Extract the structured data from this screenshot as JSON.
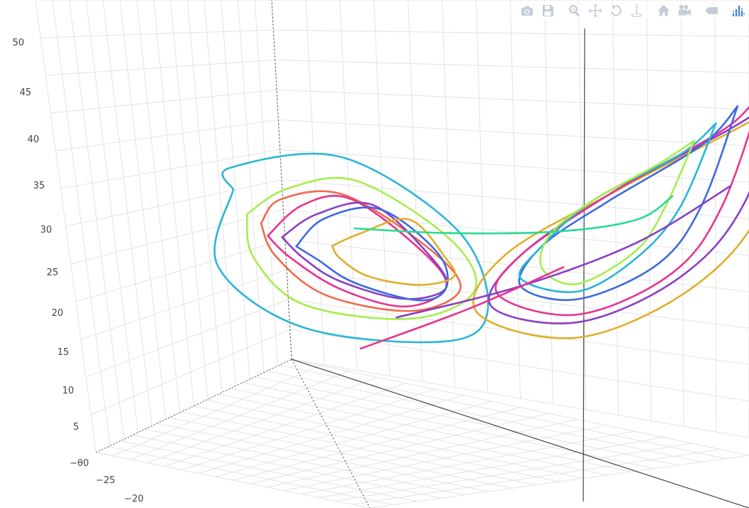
{
  "colors": {
    "background": "#ffffff",
    "grid": "#e3e3e3",
    "axis_line": "#444444",
    "tick_text": "#444444",
    "modebar_icon": "#c4cdd8",
    "plotly_logo": "#3f83cf"
  },
  "modebar": [
    {
      "name": "download-png-icon",
      "title": "Download plot as a png"
    },
    {
      "name": "save-icon",
      "title": "Save"
    },
    {
      "name": "zoom-icon",
      "title": "Zoom"
    },
    {
      "name": "pan-icon",
      "title": "Pan"
    },
    {
      "name": "orbit-rotation-icon",
      "title": "Orbital rotation"
    },
    {
      "name": "turntable-rotation-icon",
      "title": "Turntable rotation"
    },
    {
      "name": "reset-camera-icon",
      "title": "Reset camera to default"
    },
    {
      "name": "last-save-camera-icon",
      "title": "Reset camera to last save"
    },
    {
      "name": "hover-toggle-icon",
      "title": "Toggle show closest data on hover"
    },
    {
      "name": "plotly-logo-icon",
      "title": "Produced with Plotly"
    }
  ],
  "chart_data": {
    "type": "line",
    "subtype": "3d",
    "title": "",
    "grid": true,
    "legend": "none",
    "z_axis": {
      "ticks": [
        "50",
        "45",
        "40",
        "35",
        "30",
        "25",
        "20",
        "15",
        "10",
        "5",
        "−θ0"
      ],
      "range": [
        0,
        50
      ]
    },
    "x_axis": {
      "ticks": [
        "−25",
        "−20"
      ]
    },
    "series": [
      {
        "color": "#29b6d6",
        "points": [
          [
            -14,
            -4,
            30
          ],
          [
            -9,
            -14,
            38
          ],
          [
            2,
            -20,
            44
          ],
          [
            8,
            -16,
            34
          ],
          [
            6,
            -8,
            20
          ],
          [
            0,
            -2,
            12
          ],
          [
            -8,
            -6,
            14
          ],
          [
            -13,
            -8,
            22
          ],
          [
            -14,
            -4,
            30
          ]
        ]
      },
      {
        "color": "#a4ef4d",
        "points": [
          [
            -12,
            -6,
            28
          ],
          [
            -6,
            -12,
            35
          ],
          [
            1,
            -16,
            39
          ],
          [
            6,
            -13,
            31
          ],
          [
            4,
            -6,
            21
          ],
          [
            -2,
            -3,
            15
          ],
          [
            -8,
            -6,
            17
          ],
          [
            -11,
            -7,
            23
          ],
          [
            -12,
            -6,
            28
          ]
        ]
      },
      {
        "color": "#f2694a",
        "points": [
          [
            -11,
            -6,
            27
          ],
          [
            -7,
            -11,
            33
          ],
          [
            -1,
            -14,
            36
          ],
          [
            4,
            -12,
            29
          ],
          [
            3,
            -6,
            21
          ],
          [
            -2,
            -3,
            16
          ],
          [
            -7,
            -5,
            18
          ],
          [
            -10,
            -6,
            23
          ],
          [
            -11,
            -6,
            27
          ]
        ]
      },
      {
        "color": "#e8338f",
        "points": [
          [
            -10,
            -7,
            26
          ],
          [
            -6,
            -10,
            32
          ],
          [
            -1,
            -13,
            35
          ],
          [
            3,
            -11,
            28
          ],
          [
            2,
            -6,
            21
          ],
          [
            -2,
            -4,
            17
          ],
          [
            -6,
            -5,
            19
          ],
          [
            -9,
            -6,
            23
          ],
          [
            -10,
            -7,
            26
          ]
        ]
      },
      {
        "color": "#8a3fc4",
        "points": [
          [
            -9,
            -7,
            26
          ],
          [
            -5,
            -10,
            31
          ],
          [
            0,
            -12,
            34
          ],
          [
            3,
            -10,
            27
          ],
          [
            2,
            -6,
            21
          ],
          [
            -2,
            -4,
            18
          ],
          [
            -6,
            -5,
            20
          ],
          [
            -8,
            -6,
            23
          ],
          [
            -9,
            -7,
            26
          ]
        ]
      },
      {
        "color": "#3d69e0",
        "points": [
          [
            -8,
            -7,
            25
          ],
          [
            -5,
            -9,
            30
          ],
          [
            0,
            -11,
            33
          ],
          [
            3,
            -9,
            27
          ],
          [
            2,
            -6,
            21
          ],
          [
            -1,
            -4,
            18
          ],
          [
            -5,
            -5,
            20
          ],
          [
            -7,
            -6,
            23
          ],
          [
            -8,
            -7,
            25
          ]
        ]
      },
      {
        "color": "#e0ae2a",
        "points": [
          [
            -6,
            -6,
            25
          ],
          [
            -3,
            -8,
            28
          ],
          [
            1,
            -9,
            31
          ],
          [
            3,
            -8,
            26
          ],
          [
            2,
            -5,
            22
          ],
          [
            -1,
            -4,
            20
          ],
          [
            -4,
            -5,
            21
          ],
          [
            -6,
            -5,
            23
          ],
          [
            -6,
            -6,
            25
          ]
        ]
      },
      {
        "color": "#e0ae2a",
        "points": [
          [
            15,
            18,
            44
          ],
          [
            13,
            18,
            37
          ],
          [
            6,
            10,
            28
          ],
          [
            1,
            4,
            21
          ],
          [
            0,
            2,
            14
          ],
          [
            5,
            6,
            10
          ],
          [
            11,
            10,
            16
          ],
          [
            14,
            14,
            26
          ],
          [
            15,
            18,
            44
          ]
        ]
      },
      {
        "color": "#8a3fc4",
        "points": [
          [
            14,
            17,
            42
          ],
          [
            12,
            16,
            36
          ],
          [
            6,
            9,
            28
          ],
          [
            2,
            4,
            21
          ],
          [
            1,
            2,
            15
          ],
          [
            5,
            6,
            12
          ],
          [
            10,
            10,
            17
          ],
          [
            13,
            13,
            26
          ],
          [
            14,
            17,
            42
          ]
        ]
      },
      {
        "color": "#e8338f",
        "points": [
          [
            13,
            16,
            41
          ],
          [
            11,
            15,
            35
          ],
          [
            6,
            9,
            28
          ],
          [
            2,
            4,
            21
          ],
          [
            1,
            3,
            16
          ],
          [
            5,
            6,
            13
          ],
          [
            10,
            9,
            18
          ],
          [
            12,
            12,
            26
          ],
          [
            13,
            16,
            41
          ]
        ]
      },
      {
        "color": "#3d69e0",
        "points": [
          [
            12,
            14,
            38
          ],
          [
            10,
            13,
            33
          ],
          [
            6,
            8,
            27
          ],
          [
            3,
            5,
            22
          ],
          [
            2,
            4,
            17
          ],
          [
            5,
            6,
            15
          ],
          [
            9,
            9,
            19
          ],
          [
            11,
            11,
            26
          ],
          [
            12,
            14,
            38
          ]
        ]
      },
      {
        "color": "#29b6d6",
        "points": [
          [
            11,
            13,
            36
          ],
          [
            9,
            12,
            32
          ],
          [
            5,
            8,
            27
          ],
          [
            3,
            5,
            22
          ],
          [
            2,
            4,
            18
          ],
          [
            5,
            6,
            16
          ],
          [
            8,
            8,
            20
          ],
          [
            10,
            10,
            26
          ],
          [
            11,
            13,
            36
          ]
        ]
      },
      {
        "color": "#a4ef4d",
        "points": [
          [
            10,
            12,
            34
          ],
          [
            8,
            11,
            31
          ],
          [
            5,
            8,
            27
          ],
          [
            3,
            6,
            23
          ],
          [
            3,
            5,
            19
          ],
          [
            5,
            6,
            17
          ],
          [
            8,
            8,
            21
          ],
          [
            9,
            10,
            26
          ],
          [
            10,
            12,
            34
          ]
        ]
      },
      {
        "color": "#2bd98f",
        "points": [
          [
            -6,
            -3,
            26
          ],
          [
            -2,
            2,
            24
          ],
          [
            3,
            7,
            23
          ],
          [
            7,
            10,
            24
          ],
          [
            9,
            11,
            27
          ]
        ]
      },
      {
        "color": "#f2694a",
        "points": [
          [
            16,
            15,
            22
          ],
          [
            15,
            16,
            30
          ],
          [
            13,
            15,
            36
          ]
        ]
      },
      {
        "color": "#8a3fc4",
        "points": [
          [
            -2,
            -5,
            16
          ],
          [
            3,
            2,
            18
          ],
          [
            8,
            8,
            22
          ],
          [
            12,
            13,
            28
          ]
        ]
      },
      {
        "color": "#e8338f",
        "points": [
          [
            -4,
            -6,
            12
          ],
          [
            1,
            -1,
            16
          ],
          [
            5,
            4,
            20
          ]
        ]
      }
    ]
  }
}
